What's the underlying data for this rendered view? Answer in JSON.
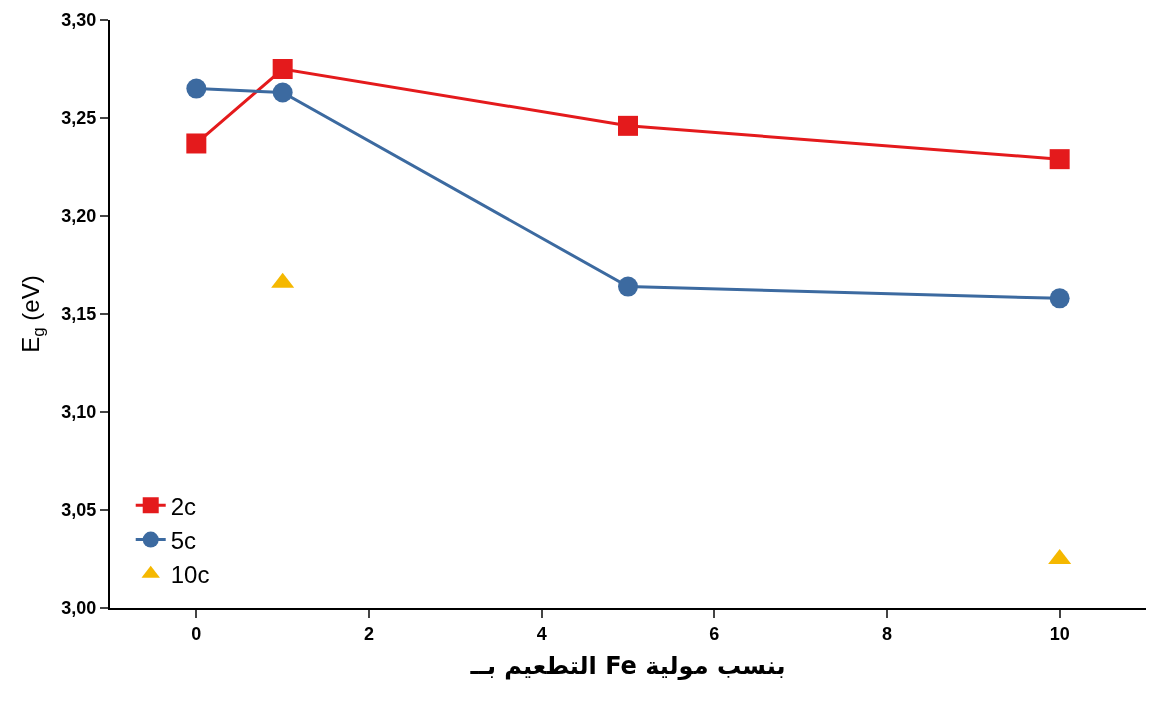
{
  "chart_data": {
    "type": "line",
    "xlabel": "التطعيم بــ Fe بنسب مولية",
    "ylabel": "E$_{g}$ (eV)",
    "xlim": [
      -1,
      11
    ],
    "xticks": [
      0,
      2,
      4,
      6,
      8,
      10
    ],
    "ylim": [
      3.0,
      3.3
    ],
    "yticks": [
      {
        "value": 3.0,
        "label": "3,00"
      },
      {
        "value": 3.05,
        "label": "3,05"
      },
      {
        "value": 3.1,
        "label": "3,10"
      },
      {
        "value": 3.15,
        "label": "3,15"
      },
      {
        "value": 3.2,
        "label": "3,20"
      },
      {
        "value": 3.25,
        "label": "3,25"
      },
      {
        "value": 3.3,
        "label": "3,30"
      }
    ],
    "legend": "bottom left",
    "series": [
      {
        "name": "2c",
        "color": "#e41a1c",
        "marker": "square",
        "x": [
          0,
          1,
          5,
          10
        ],
        "values": [
          3.237,
          3.275,
          3.246,
          3.229
        ]
      },
      {
        "name": "5c",
        "color": "#3c6aa0",
        "marker": "circle",
        "x": [
          0,
          1,
          5,
          10
        ],
        "values": [
          3.265,
          3.263,
          3.164,
          3.158
        ]
      },
      {
        "name": "10c",
        "type": "scatter",
        "color": "#f5b800",
        "marker": "triangle",
        "x": [
          1,
          10
        ],
        "values": [
          3.166,
          3.025
        ]
      }
    ]
  }
}
